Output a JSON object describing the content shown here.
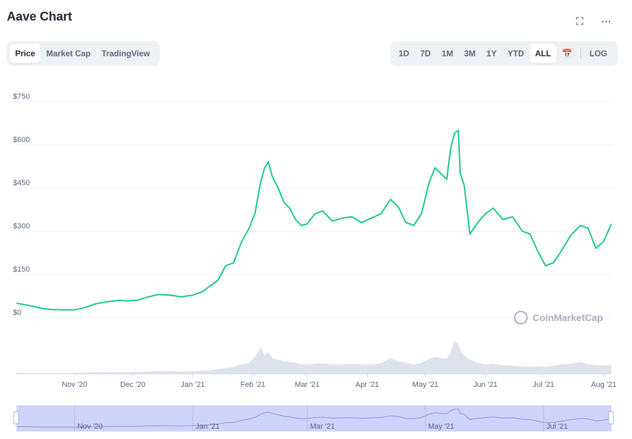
{
  "title": "Aave Chart",
  "icons": {
    "expand": "expand-icon",
    "more": "more-icon",
    "calendar": "calendar-icon"
  },
  "tabs": [
    {
      "label": "Price",
      "active": true
    },
    {
      "label": "Market Cap",
      "active": false
    },
    {
      "label": "TradingView",
      "active": false
    }
  ],
  "ranges": [
    {
      "label": "1D",
      "active": false
    },
    {
      "label": "7D",
      "active": false
    },
    {
      "label": "1M",
      "active": false
    },
    {
      "label": "3M",
      "active": false
    },
    {
      "label": "1Y",
      "active": false
    },
    {
      "label": "YTD",
      "active": false
    },
    {
      "label": "ALL",
      "active": true
    }
  ],
  "log_label": "LOG",
  "watermark": "CoinMarketCap",
  "colors": {
    "line": "#16c784",
    "volume": "#dde2ec",
    "navigator_fill": "#cdd3fb",
    "grid": "#eff2f5"
  },
  "chart_data": {
    "type": "line",
    "ylim": [
      0,
      750
    ],
    "yticks": [
      "$0",
      "$150",
      "$300",
      "$450",
      "$600",
      "$750"
    ],
    "ytick_values": [
      0,
      150,
      300,
      450,
      600,
      750
    ],
    "xticks": [
      "Nov '20",
      "Dec '20",
      "Jan '21",
      "Feb '21",
      "Mar '21",
      "Apr '21",
      "May '21",
      "Jun '21",
      "Jul '21",
      "Aug '21"
    ],
    "xtick_dates": [
      "2020-11-01",
      "2020-12-01",
      "2021-01-01",
      "2021-02-01",
      "2021-03-01",
      "2021-04-01",
      "2021-05-01",
      "2021-06-01",
      "2021-07-01",
      "2021-08-01"
    ],
    "navigator_ticks": [
      "Nov '20",
      "Jan '21",
      "Mar '21",
      "May '21",
      "Jul '21"
    ],
    "navigator_dates": [
      "2020-11-01",
      "2021-01-01",
      "2021-03-01",
      "2021-05-01",
      "2021-07-01"
    ],
    "x_range": [
      "2020-10-02",
      "2021-08-05"
    ],
    "series": [
      {
        "dates": [
          "2020-10-02",
          "2020-10-06",
          "2020-10-10",
          "2020-10-15",
          "2020-10-20",
          "2020-10-25",
          "2020-11-01",
          "2020-11-06",
          "2020-11-12",
          "2020-11-18",
          "2020-11-24",
          "2020-11-28",
          "2020-12-03",
          "2020-12-08",
          "2020-12-14",
          "2020-12-20",
          "2020-12-26",
          "2021-01-01",
          "2021-01-06",
          "2021-01-10",
          "2021-01-14",
          "2021-01-18",
          "2021-01-22",
          "2021-01-26",
          "2021-01-30",
          "2021-02-02",
          "2021-02-05",
          "2021-02-07",
          "2021-02-09",
          "2021-02-11",
          "2021-02-14",
          "2021-02-17",
          "2021-02-20",
          "2021-02-23",
          "2021-02-26",
          "2021-03-01",
          "2021-03-05",
          "2021-03-09",
          "2021-03-14",
          "2021-03-19",
          "2021-03-24",
          "2021-03-29",
          "2021-04-03",
          "2021-04-08",
          "2021-04-13",
          "2021-04-17",
          "2021-04-21",
          "2021-04-25",
          "2021-04-29",
          "2021-05-03",
          "2021-05-06",
          "2021-05-09",
          "2021-05-12",
          "2021-05-14",
          "2021-05-16",
          "2021-05-18",
          "2021-05-19",
          "2021-05-21",
          "2021-05-24",
          "2021-05-28",
          "2021-06-01",
          "2021-06-05",
          "2021-06-10",
          "2021-06-15",
          "2021-06-20",
          "2021-06-24",
          "2021-06-28",
          "2021-07-02",
          "2021-07-06",
          "2021-07-10",
          "2021-07-15",
          "2021-07-20",
          "2021-07-24",
          "2021-07-28",
          "2021-08-01",
          "2021-08-05"
        ],
        "values": [
          50,
          45,
          40,
          32,
          28,
          27,
          27,
          34,
          48,
          55,
          60,
          58,
          60,
          70,
          80,
          78,
          72,
          78,
          90,
          110,
          130,
          180,
          190,
          260,
          310,
          360,
          470,
          520,
          540,
          490,
          450,
          400,
          380,
          340,
          320,
          325,
          360,
          370,
          335,
          345,
          350,
          330,
          345,
          360,
          410,
          385,
          330,
          320,
          360,
          470,
          520,
          500,
          480,
          585,
          640,
          650,
          500,
          460,
          290,
          330,
          360,
          380,
          340,
          350,
          300,
          290,
          230,
          180,
          190,
          230,
          285,
          320,
          310,
          240,
          265,
          325
        ]
      }
    ],
    "volume": [
      3,
      3,
      2,
      2,
      2,
      2,
      3,
      4,
      5,
      6,
      5,
      5,
      6,
      7,
      8,
      8,
      7,
      8,
      10,
      12,
      14,
      18,
      22,
      30,
      35,
      55,
      85,
      60,
      70,
      50,
      45,
      40,
      38,
      36,
      30,
      30,
      32,
      34,
      30,
      30,
      32,
      30,
      30,
      34,
      50,
      40,
      35,
      30,
      35,
      48,
      55,
      50,
      48,
      70,
      105,
      95,
      75,
      60,
      45,
      35,
      30,
      32,
      28,
      26,
      24,
      22,
      24,
      22,
      26,
      30,
      32,
      38,
      30,
      28,
      26,
      30
    ]
  }
}
